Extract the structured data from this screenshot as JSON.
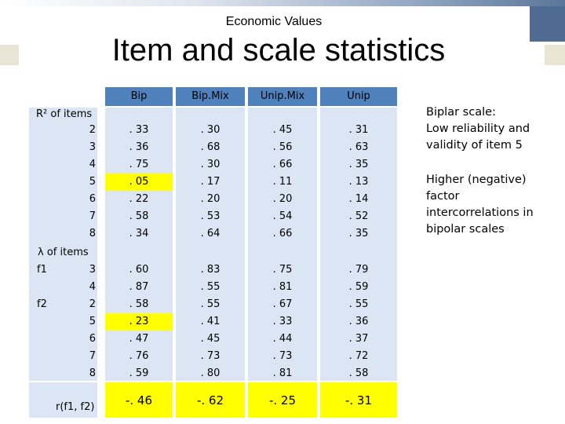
{
  "slide": {
    "subtitle": "Economic Values",
    "title": "Item and scale statistics"
  },
  "table": {
    "columns": [
      "Bip",
      "Bip.Mix",
      "Unip.Mix",
      "Unip"
    ],
    "r2_label": "R² of items",
    "lambda_label": "λ of items",
    "corr_label": "r(f1, f2)",
    "r2_rows": [
      {
        "item": "2",
        "values": [
          ". 33",
          ". 30",
          ". 45",
          ". 31"
        ]
      },
      {
        "item": "3",
        "values": [
          ". 36",
          ". 68",
          ". 56",
          ". 63"
        ]
      },
      {
        "item": "4",
        "values": [
          ". 75",
          ". 30",
          ". 66",
          ". 35"
        ]
      },
      {
        "item": "5",
        "values": [
          ". 05",
          ". 17",
          ". 11",
          ". 13"
        ]
      },
      {
        "item": "6",
        "values": [
          ". 22",
          ". 20",
          ". 20",
          ". 14"
        ]
      },
      {
        "item": "7",
        "values": [
          ". 58",
          ". 53",
          ". 54",
          ". 52"
        ]
      },
      {
        "item": "8",
        "values": [
          ". 34",
          ". 64",
          ". 66",
          ". 35"
        ]
      }
    ],
    "lambda_rows": [
      {
        "factor": "f1",
        "item": "3",
        "values": [
          ". 60",
          ". 83",
          ". 75",
          ". 79"
        ]
      },
      {
        "factor": "",
        "item": "4",
        "values": [
          ". 87",
          ". 55",
          ". 81",
          ". 59"
        ]
      },
      {
        "factor": "f2",
        "item": "2",
        "values": [
          ". 58",
          ". 55",
          ". 67",
          ". 55"
        ]
      },
      {
        "factor": "",
        "item": "5",
        "values": [
          ". 23",
          ". 41",
          ". 33",
          ". 36"
        ]
      },
      {
        "factor": "",
        "item": "6",
        "values": [
          ". 47",
          ". 45",
          ". 44",
          ". 37"
        ]
      },
      {
        "factor": "",
        "item": "7",
        "values": [
          ". 76",
          ". 73",
          ". 73",
          ". 72"
        ]
      },
      {
        "factor": "",
        "item": "8",
        "values": [
          ". 59",
          ". 80",
          ". 81",
          ". 58"
        ]
      }
    ],
    "corr_values": [
      "-. 46",
      "-. 62",
      "-. 25",
      "-. 31"
    ],
    "highlight_color": "#ffff00",
    "header_color": "#4f81bd",
    "body_color": "#dbe5f3"
  },
  "notes": {
    "note1": [
      "Biplar scale:",
      "Low reliability and",
      "validity of item 5"
    ],
    "note2": [
      "Higher (negative)",
      "factor",
      "intercorrelations in",
      "bipolar scales"
    ]
  }
}
